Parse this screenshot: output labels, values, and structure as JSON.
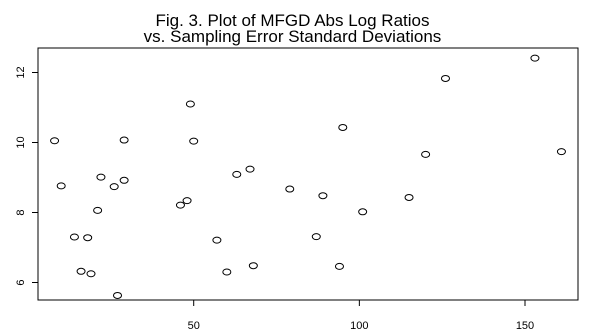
{
  "chart_data": {
    "type": "scatter",
    "title_lines": [
      "Fig. 3.  Plot of MFGD Abs Log Ratios",
      "vs. Sampling Error Standard Deviations"
    ],
    "xlabel": "",
    "ylabel": "",
    "xlim": [
      3,
      166
    ],
    "ylim": [
      5.5,
      12.7
    ],
    "x_ticks": [
      50,
      100,
      150
    ],
    "y_ticks": [
      6,
      8,
      10,
      12
    ],
    "grid": false,
    "legend": "none",
    "point_color": "#000000",
    "points": [
      {
        "x": 8,
        "y": 10.05
      },
      {
        "x": 10,
        "y": 8.76
      },
      {
        "x": 14,
        "y": 7.3
      },
      {
        "x": 16,
        "y": 6.32
      },
      {
        "x": 18,
        "y": 7.28
      },
      {
        "x": 19,
        "y": 6.25
      },
      {
        "x": 21,
        "y": 8.06
      },
      {
        "x": 22,
        "y": 9.01
      },
      {
        "x": 26,
        "y": 8.74
      },
      {
        "x": 27,
        "y": 5.63
      },
      {
        "x": 29,
        "y": 8.92
      },
      {
        "x": 29,
        "y": 10.07
      },
      {
        "x": 46,
        "y": 8.21
      },
      {
        "x": 48,
        "y": 8.34
      },
      {
        "x": 49,
        "y": 11.1
      },
      {
        "x": 50,
        "y": 10.04
      },
      {
        "x": 57,
        "y": 7.21
      },
      {
        "x": 60,
        "y": 6.3
      },
      {
        "x": 63,
        "y": 9.09
      },
      {
        "x": 67,
        "y": 9.24
      },
      {
        "x": 68,
        "y": 6.48
      },
      {
        "x": 79,
        "y": 8.67
      },
      {
        "x": 87,
        "y": 7.31
      },
      {
        "x": 89,
        "y": 8.48
      },
      {
        "x": 94,
        "y": 6.46
      },
      {
        "x": 95,
        "y": 10.43
      },
      {
        "x": 101,
        "y": 8.02
      },
      {
        "x": 115,
        "y": 8.43
      },
      {
        "x": 120,
        "y": 9.66
      },
      {
        "x": 126,
        "y": 11.83
      },
      {
        "x": 153,
        "y": 12.41
      },
      {
        "x": 161,
        "y": 9.74
      }
    ]
  }
}
